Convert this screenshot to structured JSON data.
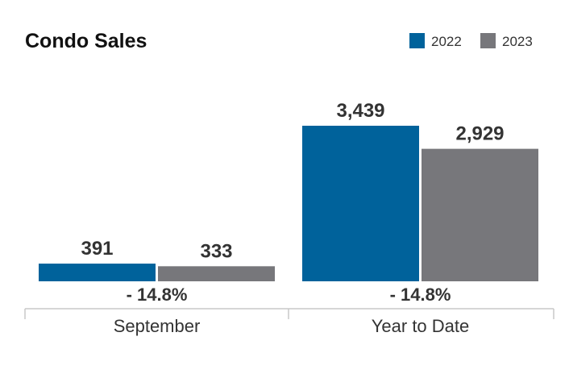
{
  "chart_data": {
    "type": "bar",
    "title": "Condo Sales",
    "categories": [
      "September",
      "Year to Date"
    ],
    "series": [
      {
        "name": "2022",
        "values": [
          391,
          3439
        ],
        "value_labels": [
          "391",
          "3,439"
        ],
        "color": "#00629b"
      },
      {
        "name": "2023",
        "values": [
          333,
          2929
        ],
        "value_labels": [
          "333",
          "2,929"
        ],
        "color": "#77777b"
      }
    ],
    "changes": [
      "- 14.8%",
      "- 14.8%"
    ],
    "legend_position": "top-right",
    "grid": false
  }
}
